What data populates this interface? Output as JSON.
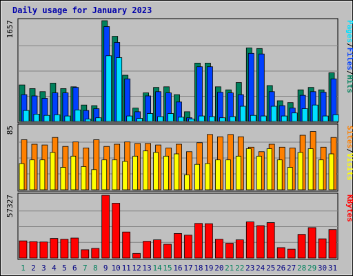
{
  "chart_data": {
    "type": "bar",
    "title": "Daily usage for January 2023",
    "categories": [
      "1",
      "2",
      "3",
      "4",
      "5",
      "6",
      "7",
      "8",
      "9",
      "10",
      "11",
      "12",
      "13",
      "14",
      "15",
      "16",
      "17",
      "18",
      "19",
      "20",
      "21",
      "22",
      "23",
      "24",
      "25",
      "26",
      "27",
      "28",
      "29",
      "30",
      "31"
    ],
    "weekend_days": [
      "1",
      "7",
      "8",
      "14",
      "15",
      "21",
      "22",
      "28",
      "29"
    ],
    "colors": {
      "hits": "#00805c",
      "files": "#0040ff",
      "pages": "#00e0ff",
      "visits": "#ffff00",
      "sites": "#ff8000",
      "kbytes": "#ff0000",
      "panel_bg": "#c0c0c0",
      "weekend_label": "#00805c",
      "weekday_label": "#000080",
      "title": "#0000aa",
      "side_separator": "#000000"
    },
    "panels": [
      {
        "id": "hits-files-pages",
        "ymax_label": "1657",
        "ymax": 1657,
        "side_labels": [
          {
            "text": "Pages",
            "color": "#00e0ff"
          },
          {
            "text": "/",
            "color": "#000000"
          },
          {
            "text": "Files",
            "color": "#0040ff"
          },
          {
            "text": "/",
            "color": "#000000"
          },
          {
            "text": "Hits",
            "color": "#00805c"
          }
        ],
        "series": [
          {
            "name": "Hits",
            "color": "#00805c",
            "values": [
              600,
              540,
              490,
              630,
              540,
              570,
              270,
              260,
              1657,
              1400,
              760,
              220,
              470,
              560,
              570,
              440,
              160,
              960,
              960,
              570,
              520,
              640,
              1210,
              1200,
              590,
              340,
              310,
              520,
              560,
              520,
              800
            ]
          },
          {
            "name": "Files",
            "color": "#0040ff",
            "values": [
              440,
              420,
              380,
              470,
              470,
              560,
              180,
              210,
              1560,
              1300,
              700,
              160,
              420,
              490,
              470,
              320,
              60,
              900,
              900,
              480,
              470,
              440,
              1120,
              1110,
              490,
              260,
              220,
              430,
              490,
              480,
              700
            ]
          },
          {
            "name": "Pages",
            "color": "#00e0ff",
            "values": [
              180,
              120,
              100,
              110,
              90,
              190,
              40,
              60,
              1080,
              1050,
              90,
              50,
              130,
              80,
              130,
              70,
              40,
              90,
              80,
              60,
              80,
              250,
              100,
              90,
              250,
              90,
              140,
              210,
              270,
              90,
              110
            ]
          }
        ]
      },
      {
        "id": "sites-visits",
        "ymax_label": "85",
        "ymax": 85,
        "side_labels": [
          {
            "text": "Sites",
            "color": "#ff8000"
          },
          {
            "text": "/",
            "color": "#000000"
          },
          {
            "text": "Visits",
            "color": "#ffff00"
          }
        ],
        "series": [
          {
            "name": "Sites",
            "color": "#ff8000",
            "values": [
              67,
              61,
              60,
              70,
              58,
              64,
              56,
              67,
              58,
              61,
              64,
              62,
              62,
              60,
              56,
              61,
              51,
              63,
              74,
              71,
              74,
              71,
              57,
              51,
              61,
              57,
              56,
              73,
              78,
              57,
              70
            ]
          },
          {
            "name": "Visits",
            "color": "#ffff00",
            "values": [
              35,
              40,
              40,
              50,
              30,
              45,
              31,
              27,
              40,
              40,
              38,
              45,
              52,
              50,
              45,
              48,
              20,
              34,
              35,
              40,
              40,
              45,
              55,
              45,
              55,
              40,
              30,
              50,
              55,
              40,
              48
            ]
          }
        ]
      },
      {
        "id": "kbytes",
        "ymax_label": "57327",
        "ymax": 57327,
        "side_labels": [
          {
            "text": "KBytes",
            "color": "#ff0000"
          }
        ],
        "series": [
          {
            "name": "KBytes",
            "color": "#ff0000",
            "values": [
              15700,
              15000,
              14700,
              17900,
              17200,
              18300,
              7600,
              8800,
              57327,
              50100,
              23800,
              4200,
              15300,
              16600,
              12600,
              22400,
              20900,
              31600,
              31400,
              17200,
              13500,
              16600,
              33000,
              29600,
              32400,
              9500,
              8100,
              21600,
              27800,
              17600,
              26000
            ]
          }
        ]
      }
    ]
  }
}
